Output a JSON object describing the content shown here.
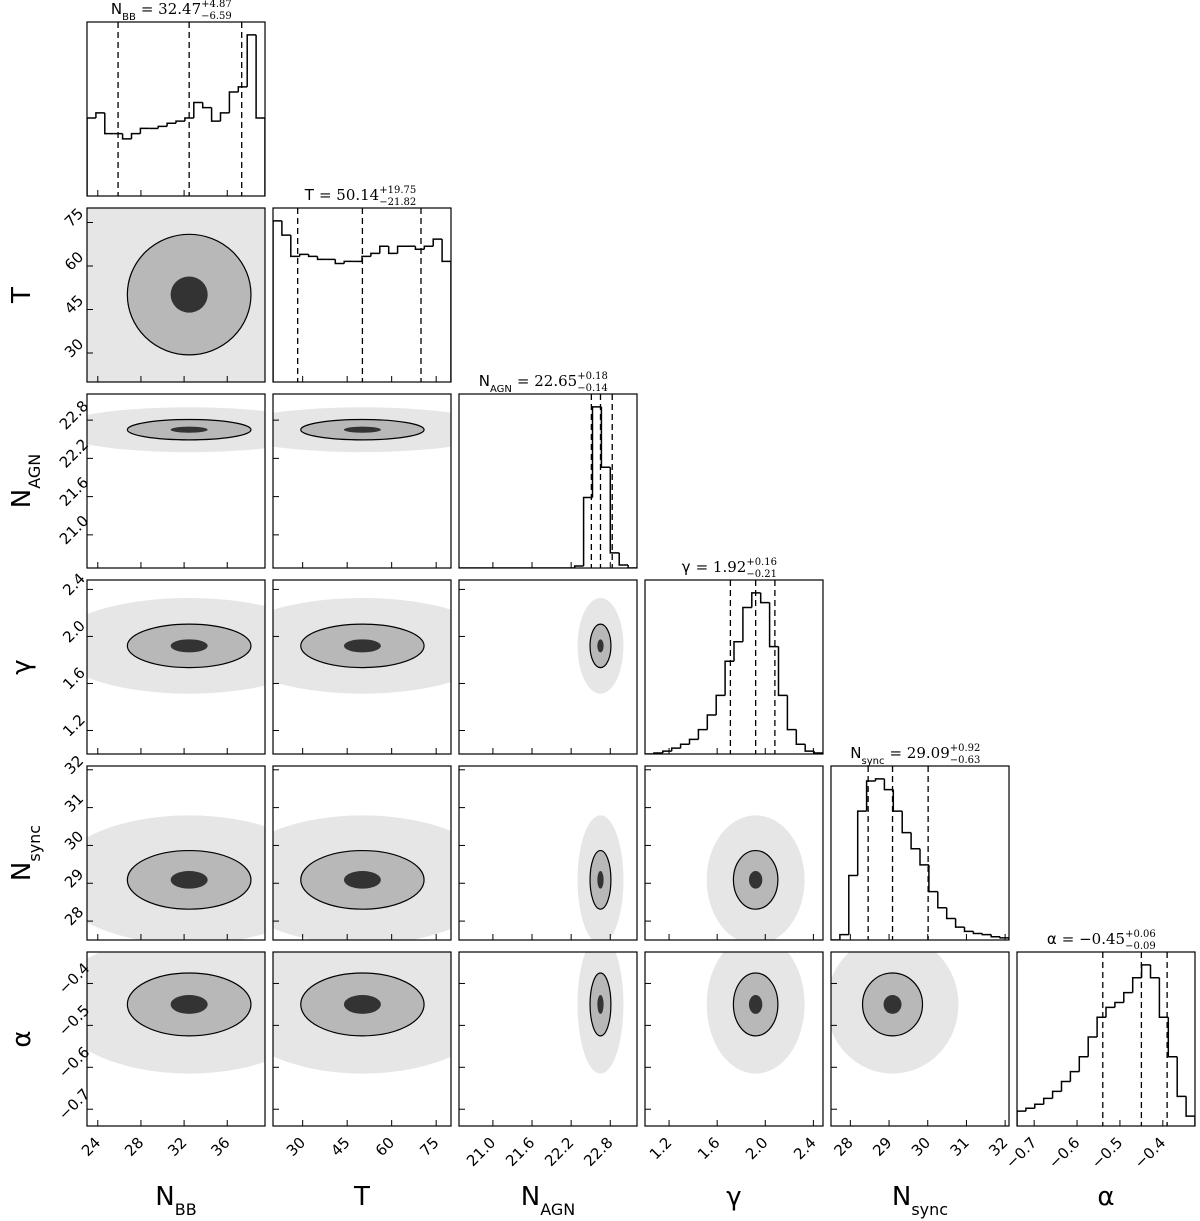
{
  "chart_data": {
    "type": "corner",
    "hist_color": "#000000",
    "contour_color": "#000000",
    "fill_color": "#b8b8b8",
    "halo_color": "#e6e6e6",
    "parameters": [
      {
        "label": "N",
        "label_sub": "BB",
        "title": "N",
        "title_sub": "BB",
        "title_eq": "= 32.47",
        "title_sup": "+4.87",
        "title_inf": "−6.59",
        "lim": [
          23,
          39.5
        ],
        "ticks": [
          24,
          28,
          32,
          36
        ],
        "quantiles": [
          25.88,
          32.47,
          37.34
        ],
        "hist_bins": [
          23,
          23.825,
          24.65,
          25.475,
          26.3,
          27.125,
          27.95,
          28.775,
          29.6,
          30.425,
          31.25,
          32.075,
          32.9,
          33.725,
          34.55,
          35.375,
          36.2,
          37.025,
          37.85,
          38.675,
          39.5
        ],
        "hist_counts": [
          75,
          80,
          60,
          60,
          55,
          60,
          65,
          65,
          67,
          70,
          72,
          75,
          90,
          85,
          72,
          80,
          100,
          105,
          155,
          75
        ]
      },
      {
        "label": "T",
        "title": "T",
        "title_eq": "= 50.14",
        "title_sup": "+19.75",
        "title_inf": "−21.82",
        "lim": [
          20,
          80
        ],
        "ticks": [
          30,
          45,
          60,
          75
        ],
        "quantiles": [
          28.32,
          50.14,
          69.89
        ],
        "hist_bins": [
          20,
          23,
          26,
          29,
          32,
          35,
          38,
          41,
          44,
          47,
          50,
          53,
          56,
          59,
          62,
          65,
          68,
          71,
          74,
          77,
          80
        ],
        "hist_counts": [
          159,
          145,
          124,
          126,
          124,
          121,
          121,
          117,
          119,
          119,
          124,
          127,
          134,
          127,
          134,
          134,
          131,
          134,
          141,
          119
        ]
      },
      {
        "label": "N",
        "label_sub": "AGN",
        "title": "N",
        "title_sub": "AGN",
        "title_eq": "= 22.65",
        "title_sup": "+0.18",
        "title_inf": "−0.14",
        "lim": [
          20.48,
          23.21
        ],
        "ticks": [
          {
            "value": 21,
            "label": "21.0"
          },
          21.6,
          22.2,
          22.8
        ],
        "quantiles": [
          22.51,
          22.65,
          22.83
        ],
        "hist_bins": [
          20.48,
          20.6165,
          20.753,
          20.8895,
          21.026,
          21.1625,
          21.299,
          21.4355,
          21.572,
          21.7085,
          21.845,
          21.9815,
          22.118,
          22.2545,
          22.391,
          22.5275,
          22.664,
          22.8005,
          22.937,
          23.0735,
          23.21
        ],
        "hist_counts": [
          0,
          0,
          0,
          0,
          0,
          0,
          0,
          0,
          0,
          0,
          0,
          0,
          0,
          2,
          70,
          160,
          100,
          15,
          3,
          0
        ]
      },
      {
        "label": "γ",
        "title": "γ",
        "title_eq": "= 1.92",
        "title_sup": "+0.16",
        "title_inf": "−0.21",
        "lim": [
          1.0,
          2.48
        ],
        "ticks": [
          1.2,
          1.6,
          {
            "value": 2,
            "label": "2.0"
          },
          2.4
        ],
        "quantiles": [
          1.71,
          1.92,
          2.08
        ],
        "hist_bins": [
          1.0,
          1.074,
          1.148,
          1.222,
          1.296,
          1.37,
          1.444,
          1.518,
          1.592,
          1.666,
          1.74,
          1.814,
          1.888,
          1.962,
          2.036,
          2.11,
          2.184,
          2.258,
          2.332,
          2.406,
          2.48
        ],
        "hist_counts": [
          0,
          1,
          3,
          6,
          10,
          15,
          25,
          40,
          60,
          95,
          115,
          150,
          165,
          155,
          110,
          60,
          25,
          10,
          3,
          1
        ]
      },
      {
        "label": "N",
        "label_sub": "sync",
        "title": "N",
        "title_sub": "sync",
        "title_eq": "= 29.09",
        "title_sup": "+0.92",
        "title_inf": "−0.63",
        "lim": [
          27.5,
          32.1
        ],
        "ticks": [
          28,
          29,
          30,
          31,
          32
        ],
        "quantiles": [
          28.46,
          29.09,
          30.01
        ],
        "hist_bins": [
          27.5,
          27.73,
          27.96,
          28.19,
          28.42,
          28.65,
          28.88,
          29.11,
          29.34,
          29.57,
          29.8,
          30.03,
          30.26,
          30.49,
          30.72,
          30.95,
          31.18,
          31.41,
          31.64,
          31.87,
          32.1
        ],
        "hist_counts": [
          0,
          5,
          60,
          120,
          148,
          150,
          140,
          120,
          100,
          85,
          70,
          45,
          30,
          20,
          12,
          8,
          6,
          5,
          3,
          2
        ]
      },
      {
        "label": "α",
        "title": "α",
        "title_eq": "= −0.45",
        "title_sup": "+0.06",
        "title_inf": "−0.09",
        "lim": [
          -0.74,
          -0.325
        ],
        "ticks": [
          {
            "value": -0.7,
            "label": "−0.7"
          },
          {
            "value": -0.6,
            "label": "−0.6"
          },
          {
            "value": -0.5,
            "label": "−0.5"
          },
          {
            "value": -0.4,
            "label": "−0.4"
          }
        ],
        "quantiles": [
          -0.54,
          -0.45,
          -0.39
        ],
        "hist_bins": [
          -0.74,
          -0.71925,
          -0.6985,
          -0.67775,
          -0.657,
          -0.63625,
          -0.6155,
          -0.59475,
          -0.574,
          -0.55325,
          -0.5325,
          -0.51175,
          -0.491,
          -0.47025,
          -0.4495,
          -0.42875,
          -0.408,
          -0.38725,
          -0.3665,
          -0.34575,
          -0.325
        ],
        "hist_counts": [
          15,
          18,
          22,
          28,
          35,
          45,
          55,
          70,
          90,
          110,
          120,
          125,
          135,
          150,
          163,
          150,
          110,
          70,
          30,
          10
        ]
      }
    ]
  }
}
